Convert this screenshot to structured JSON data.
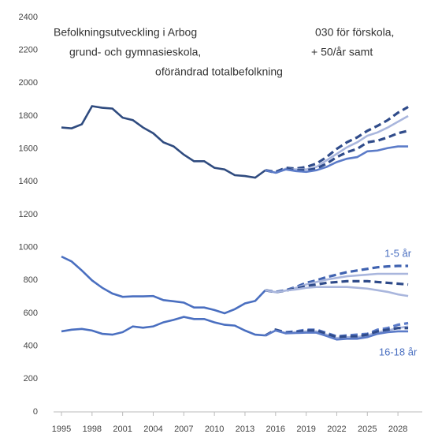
{
  "chart_data": {
    "type": "line",
    "title_fragments": [
      "Befolkningsutveckling i Arboga",
      "030 för förskola,",
      "grund- och gymnasieskola,",
      "+ 50/år  samt",
      "oförändrad totalbefolkning"
    ],
    "x": [
      1995,
      1996,
      1997,
      1998,
      1999,
      2000,
      2001,
      2002,
      2003,
      2004,
      2005,
      2006,
      2007,
      2008,
      2009,
      2010,
      2011,
      2012,
      2013,
      2014,
      2015,
      2016,
      2017,
      2018,
      2019,
      2020,
      2021,
      2022,
      2023,
      2024,
      2025,
      2026,
      2027,
      2028,
      2029
    ],
    "xlim": [
      1995,
      2030
    ],
    "xticks": [
      1995,
      1998,
      2001,
      2004,
      2007,
      2010,
      2013,
      2016,
      2019,
      2022,
      2025,
      2028
    ],
    "ylim": [
      0,
      2400
    ],
    "yticks": [
      0,
      200,
      400,
      600,
      800,
      1000,
      1200,
      1400,
      1600,
      1800,
      2000,
      2200,
      2400
    ],
    "series": [
      {
        "color": "#2f4b7f",
        "dashed": false,
        "values": [
          1730,
          1725,
          1750,
          1860,
          1850,
          1845,
          1790,
          1775,
          1730,
          1695,
          1640,
          1615,
          1565,
          1525,
          1525,
          1485,
          1475,
          1440,
          1435,
          1425,
          1470,
          null,
          null,
          null,
          null,
          null,
          null,
          null,
          null,
          null,
          null,
          null,
          null,
          null,
          null
        ]
      },
      {
        "color": "#2f4b8a",
        "dashed": true,
        "values": [
          null,
          null,
          null,
          null,
          null,
          null,
          null,
          null,
          null,
          null,
          null,
          null,
          null,
          null,
          null,
          null,
          null,
          null,
          null,
          null,
          1470,
          1460,
          1485,
          1480,
          1490,
          1510,
          1550,
          1600,
          1640,
          1670,
          1710,
          1740,
          1775,
          1820,
          1855
        ]
      },
      {
        "color": "#a9b6dd",
        "dashed": false,
        "values": [
          null,
          null,
          null,
          null,
          null,
          null,
          null,
          null,
          null,
          null,
          null,
          null,
          null,
          null,
          null,
          null,
          null,
          null,
          null,
          null,
          1470,
          1455,
          1480,
          1475,
          1475,
          1490,
          1530,
          1570,
          1610,
          1640,
          1680,
          1700,
          1730,
          1765,
          1800
        ]
      },
      {
        "color": "#2f4b8a",
        "dashed": true,
        "values": [
          null,
          null,
          null,
          null,
          null,
          null,
          null,
          null,
          null,
          null,
          null,
          null,
          null,
          null,
          null,
          null,
          null,
          null,
          null,
          null,
          1470,
          1455,
          1480,
          1470,
          1470,
          1480,
          1510,
          1550,
          1580,
          1600,
          1640,
          1650,
          1670,
          1695,
          1710
        ]
      },
      {
        "color": "#5b7bc8",
        "dashed": false,
        "values": [
          null,
          null,
          null,
          null,
          null,
          null,
          null,
          null,
          null,
          null,
          null,
          null,
          null,
          null,
          null,
          null,
          null,
          null,
          null,
          null,
          1470,
          1455,
          1475,
          1465,
          1460,
          1470,
          1490,
          1520,
          1540,
          1550,
          1585,
          1590,
          1605,
          1615,
          1615
        ]
      },
      {
        "color": "#4a6fc0",
        "dashed": false,
        "values": [
          945,
          915,
          860,
          800,
          755,
          720,
          700,
          703,
          703,
          705,
          680,
          673,
          665,
          635,
          635,
          620,
          600,
          625,
          660,
          675,
          740,
          null,
          null,
          null,
          null,
          null,
          null,
          null,
          null,
          null,
          null,
          null,
          null,
          null,
          null
        ]
      },
      {
        "color": "#3f62b0",
        "dashed": true,
        "values": [
          null,
          null,
          null,
          null,
          null,
          null,
          null,
          null,
          null,
          null,
          null,
          null,
          null,
          null,
          null,
          null,
          null,
          null,
          null,
          null,
          740,
          730,
          740,
          760,
          785,
          800,
          820,
          835,
          850,
          860,
          870,
          880,
          885,
          888,
          888
        ]
      },
      {
        "color": "#a9b6dd",
        "dashed": false,
        "values": [
          null,
          null,
          null,
          null,
          null,
          null,
          null,
          null,
          null,
          null,
          null,
          null,
          null,
          null,
          null,
          null,
          null,
          null,
          null,
          null,
          740,
          728,
          738,
          755,
          775,
          790,
          805,
          815,
          825,
          830,
          835,
          840,
          840,
          840,
          840
        ]
      },
      {
        "color": "#2f4b8a",
        "dashed": true,
        "values": [
          null,
          null,
          null,
          null,
          null,
          null,
          null,
          null,
          null,
          null,
          null,
          null,
          null,
          null,
          null,
          null,
          null,
          null,
          null,
          null,
          740,
          728,
          738,
          750,
          765,
          775,
          785,
          790,
          795,
          795,
          795,
          790,
          785,
          780,
          775
        ]
      },
      {
        "color": "#a9b6dd",
        "dashed": false,
        "values": [
          null,
          null,
          null,
          null,
          null,
          null,
          null,
          null,
          null,
          null,
          null,
          null,
          null,
          null,
          null,
          null,
          null,
          null,
          null,
          null,
          740,
          728,
          738,
          745,
          755,
          760,
          760,
          760,
          760,
          755,
          750,
          740,
          730,
          715,
          705
        ]
      },
      {
        "color": "#4a6fc0",
        "dashed": false,
        "values": [
          490,
          500,
          505,
          495,
          475,
          470,
          485,
          520,
          512,
          520,
          545,
          560,
          578,
          565,
          565,
          545,
          530,
          525,
          495,
          470,
          465,
          null,
          null,
          null,
          null,
          null,
          null,
          null,
          null,
          null,
          null,
          null,
          null,
          null,
          null
        ]
      },
      {
        "color": "#5b7bc8",
        "dashed": true,
        "values": [
          null,
          null,
          null,
          null,
          null,
          null,
          null,
          null,
          null,
          null,
          null,
          null,
          null,
          null,
          null,
          null,
          null,
          null,
          null,
          null,
          465,
          500,
          485,
          490,
          500,
          500,
          480,
          460,
          465,
          470,
          475,
          500,
          510,
          530,
          540
        ]
      },
      {
        "color": "#a9b6dd",
        "dashed": false,
        "values": [
          null,
          null,
          null,
          null,
          null,
          null,
          null,
          null,
          null,
          null,
          null,
          null,
          null,
          null,
          null,
          null,
          null,
          null,
          null,
          null,
          465,
          495,
          480,
          485,
          490,
          490,
          470,
          450,
          455,
          455,
          465,
          485,
          495,
          510,
          520
        ]
      },
      {
        "color": "#2f4b8a",
        "dashed": true,
        "values": [
          null,
          null,
          null,
          null,
          null,
          null,
          null,
          null,
          null,
          null,
          null,
          null,
          null,
          null,
          null,
          null,
          null,
          null,
          null,
          null,
          465,
          500,
          480,
          485,
          495,
          495,
          475,
          455,
          460,
          460,
          470,
          490,
          500,
          510,
          510
        ]
      },
      {
        "color": "#5b7bc8",
        "dashed": false,
        "values": [
          null,
          null,
          null,
          null,
          null,
          null,
          null,
          null,
          null,
          null,
          null,
          null,
          null,
          null,
          null,
          null,
          null,
          null,
          null,
          null,
          465,
          495,
          478,
          480,
          482,
          482,
          462,
          440,
          445,
          445,
          455,
          475,
          485,
          490,
          490
        ]
      }
    ],
    "annotations": [
      {
        "text": "1-5 år",
        "x": 2028,
        "y": 960
      },
      {
        "text": "16-18 år",
        "x": 2028,
        "y": 360
      }
    ]
  }
}
